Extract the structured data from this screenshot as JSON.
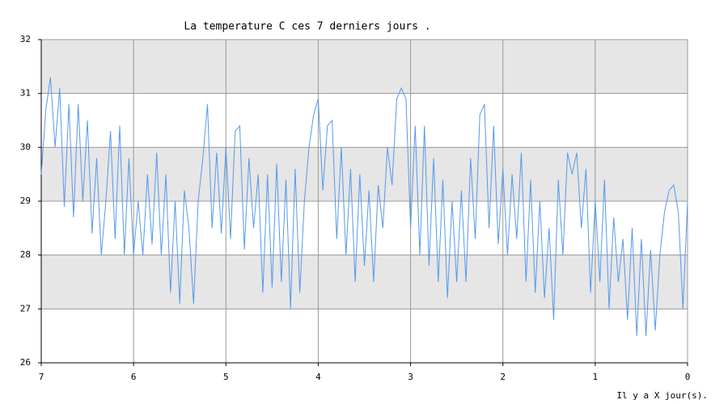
{
  "chart_data": {
    "type": "line",
    "title": "La temperature C ces 7 derniers jours .",
    "x_label": "Il y a X jour(s).",
    "x": [
      7.0,
      6.95,
      6.9,
      6.85,
      6.8,
      6.75,
      6.7,
      6.65,
      6.6,
      6.55,
      6.5,
      6.45,
      6.4,
      6.35,
      6.3,
      6.25,
      6.2,
      6.15,
      6.1,
      6.05,
      6.0,
      5.95,
      5.9,
      5.85,
      5.8,
      5.75,
      5.7,
      5.65,
      5.6,
      5.55,
      5.5,
      5.45,
      5.4,
      5.35,
      5.3,
      5.25,
      5.2,
      5.15,
      5.1,
      5.05,
      5.0,
      4.95,
      4.9,
      4.85,
      4.8,
      4.75,
      4.7,
      4.65,
      4.6,
      4.55,
      4.5,
      4.45,
      4.4,
      4.35,
      4.3,
      4.25,
      4.2,
      4.15,
      4.1,
      4.05,
      4.0,
      3.95,
      3.9,
      3.85,
      3.8,
      3.75,
      3.7,
      3.65,
      3.6,
      3.55,
      3.5,
      3.45,
      3.4,
      3.35,
      3.3,
      3.25,
      3.2,
      3.15,
      3.1,
      3.05,
      3.0,
      2.95,
      2.9,
      2.85,
      2.8,
      2.75,
      2.7,
      2.65,
      2.6,
      2.55,
      2.5,
      2.45,
      2.4,
      2.35,
      2.3,
      2.25,
      2.2,
      2.15,
      2.1,
      2.05,
      2.0,
      1.95,
      1.9,
      1.85,
      1.8,
      1.75,
      1.7,
      1.65,
      1.6,
      1.55,
      1.5,
      1.45,
      1.4,
      1.35,
      1.3,
      1.25,
      1.2,
      1.15,
      1.1,
      1.05,
      1.0,
      0.95,
      0.9,
      0.85,
      0.8,
      0.75,
      0.7,
      0.65,
      0.6,
      0.55,
      0.5,
      0.45,
      0.4,
      0.35,
      0.3,
      0.25,
      0.2,
      0.15,
      0.1,
      0.05,
      0.0
    ],
    "series": [
      {
        "name": "temperature",
        "color": "#5599ee",
        "values": [
          29.5,
          30.7,
          31.3,
          30.0,
          31.1,
          28.9,
          30.8,
          28.7,
          30.8,
          29.0,
          30.5,
          28.4,
          29.8,
          28.0,
          29.0,
          30.3,
          28.3,
          30.4,
          28.0,
          29.8,
          28.0,
          29.0,
          28.0,
          29.5,
          28.2,
          29.9,
          28.0,
          29.5,
          27.3,
          29.0,
          27.1,
          29.2,
          28.5,
          27.1,
          29.0,
          29.8,
          30.8,
          28.5,
          29.9,
          28.4,
          30.0,
          28.3,
          30.3,
          30.4,
          28.1,
          29.8,
          28.5,
          29.5,
          27.3,
          29.5,
          27.4,
          29.7,
          27.5,
          29.4,
          27.0,
          29.6,
          27.3,
          29.0,
          30.0,
          30.6,
          30.9,
          29.2,
          30.4,
          30.5,
          28.3,
          30.0,
          28.0,
          29.6,
          27.5,
          29.5,
          27.8,
          29.2,
          27.5,
          29.3,
          28.5,
          30.0,
          29.3,
          30.9,
          31.1,
          30.9,
          28.5,
          30.4,
          28.0,
          30.4,
          27.8,
          29.8,
          27.5,
          29.4,
          27.2,
          29.0,
          27.5,
          29.2,
          27.5,
          29.8,
          28.3,
          30.6,
          30.8,
          28.5,
          30.4,
          28.2,
          29.6,
          28.0,
          29.5,
          28.3,
          29.9,
          27.5,
          29.4,
          27.3,
          29.0,
          27.2,
          28.5,
          26.8,
          29.4,
          28.0,
          29.9,
          29.5,
          29.9,
          28.5,
          29.6,
          27.3,
          29.0,
          27.5,
          29.4,
          27.0,
          28.7,
          27.5,
          28.3,
          26.8,
          28.5,
          26.5,
          28.3,
          26.5,
          28.1,
          26.6,
          28.0,
          28.8,
          29.2,
          29.3,
          28.8,
          27.0,
          29.0
        ]
      }
    ],
    "xlim": [
      7,
      0
    ],
    "xticks": [
      7,
      6,
      5,
      4,
      3,
      2,
      1,
      0
    ],
    "ylim": [
      26,
      32
    ],
    "yticks": [
      26,
      27,
      28,
      29,
      30,
      31,
      32
    ],
    "grid": true,
    "band_color": "#e6e6e6"
  }
}
